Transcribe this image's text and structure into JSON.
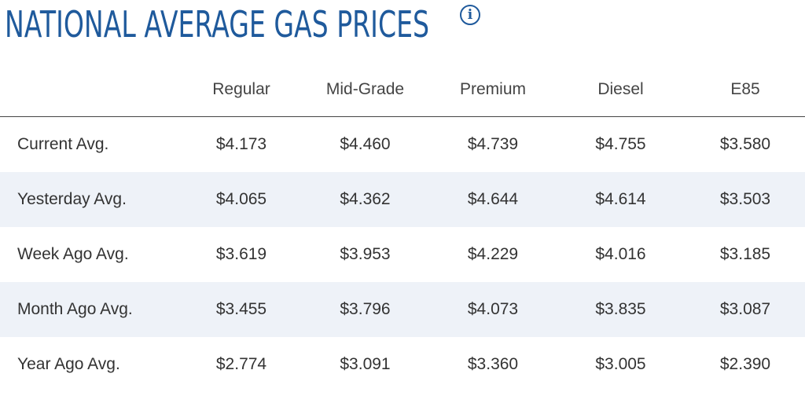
{
  "title": "NATIONAL AVERAGE GAS PRICES",
  "info_icon": "info-icon",
  "colors": {
    "title": "#1f5a9c",
    "row_alt": "#eef2f8",
    "text": "#333333"
  },
  "table": {
    "headers": [
      "",
      "Regular",
      "Mid-Grade",
      "Premium",
      "Diesel",
      "E85"
    ],
    "rows": [
      {
        "label": "Current Avg.",
        "values": [
          "$4.173",
          "$4.460",
          "$4.739",
          "$4.755",
          "$3.580"
        ]
      },
      {
        "label": "Yesterday Avg.",
        "values": [
          "$4.065",
          "$4.362",
          "$4.644",
          "$4.614",
          "$3.503"
        ]
      },
      {
        "label": "Week Ago Avg.",
        "values": [
          "$3.619",
          "$3.953",
          "$4.229",
          "$4.016",
          "$3.185"
        ]
      },
      {
        "label": "Month Ago Avg.",
        "values": [
          "$3.455",
          "$3.796",
          "$4.073",
          "$3.835",
          "$3.087"
        ]
      },
      {
        "label": "Year Ago Avg.",
        "values": [
          "$2.774",
          "$3.091",
          "$3.360",
          "$3.005",
          "$2.390"
        ]
      }
    ]
  }
}
